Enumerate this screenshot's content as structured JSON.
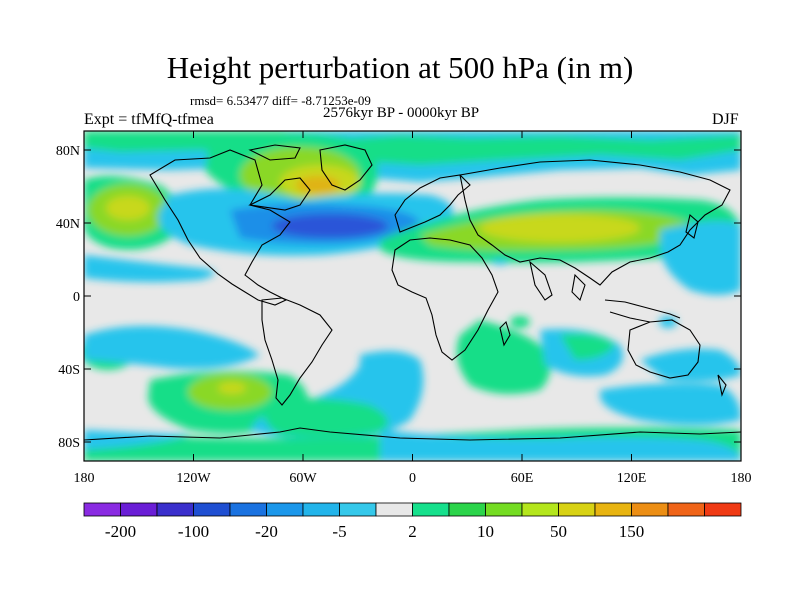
{
  "title": "Height perturbation at 500 hPa (in m)",
  "stats": "rmsd= 6.53477 diff= -8.71253e-09",
  "experiment": "Expt = tfMfQ-tfmea",
  "period": "2576kyr BP - 0000kyr BP",
  "season": "DJF",
  "lat_labels": [
    "80N",
    "40N",
    "0",
    "40S",
    "80S"
  ],
  "lon_labels": [
    "180",
    "120W",
    "60W",
    "0",
    "60E",
    "120E",
    "180"
  ],
  "colorbar": {
    "colors": [
      "#8a2be2",
      "#6a1ed6",
      "#3a2fcc",
      "#1f4fd2",
      "#1a72e0",
      "#1b97ea",
      "#22b4ea",
      "#35c8ea",
      "#e8e8e8",
      "#16e08c",
      "#2bd44a",
      "#74dc22",
      "#b4e61c",
      "#d8d214",
      "#e8b410",
      "#ec8e14",
      "#f06418",
      "#f03a14"
    ],
    "labels": [
      "-200",
      "-100",
      "-20",
      "-5",
      "2",
      "10",
      "50",
      "150"
    ]
  },
  "legend_palette": {
    "blue_dark": "#2a55d8",
    "blue_mid": "#1f8fe8",
    "blue_light": "#27c4ec",
    "neutral": "#e8e8e8",
    "green": "#18de88",
    "green_yellow": "#8ad826",
    "yellow": "#c8d81a",
    "orange": "#e0b418"
  }
}
